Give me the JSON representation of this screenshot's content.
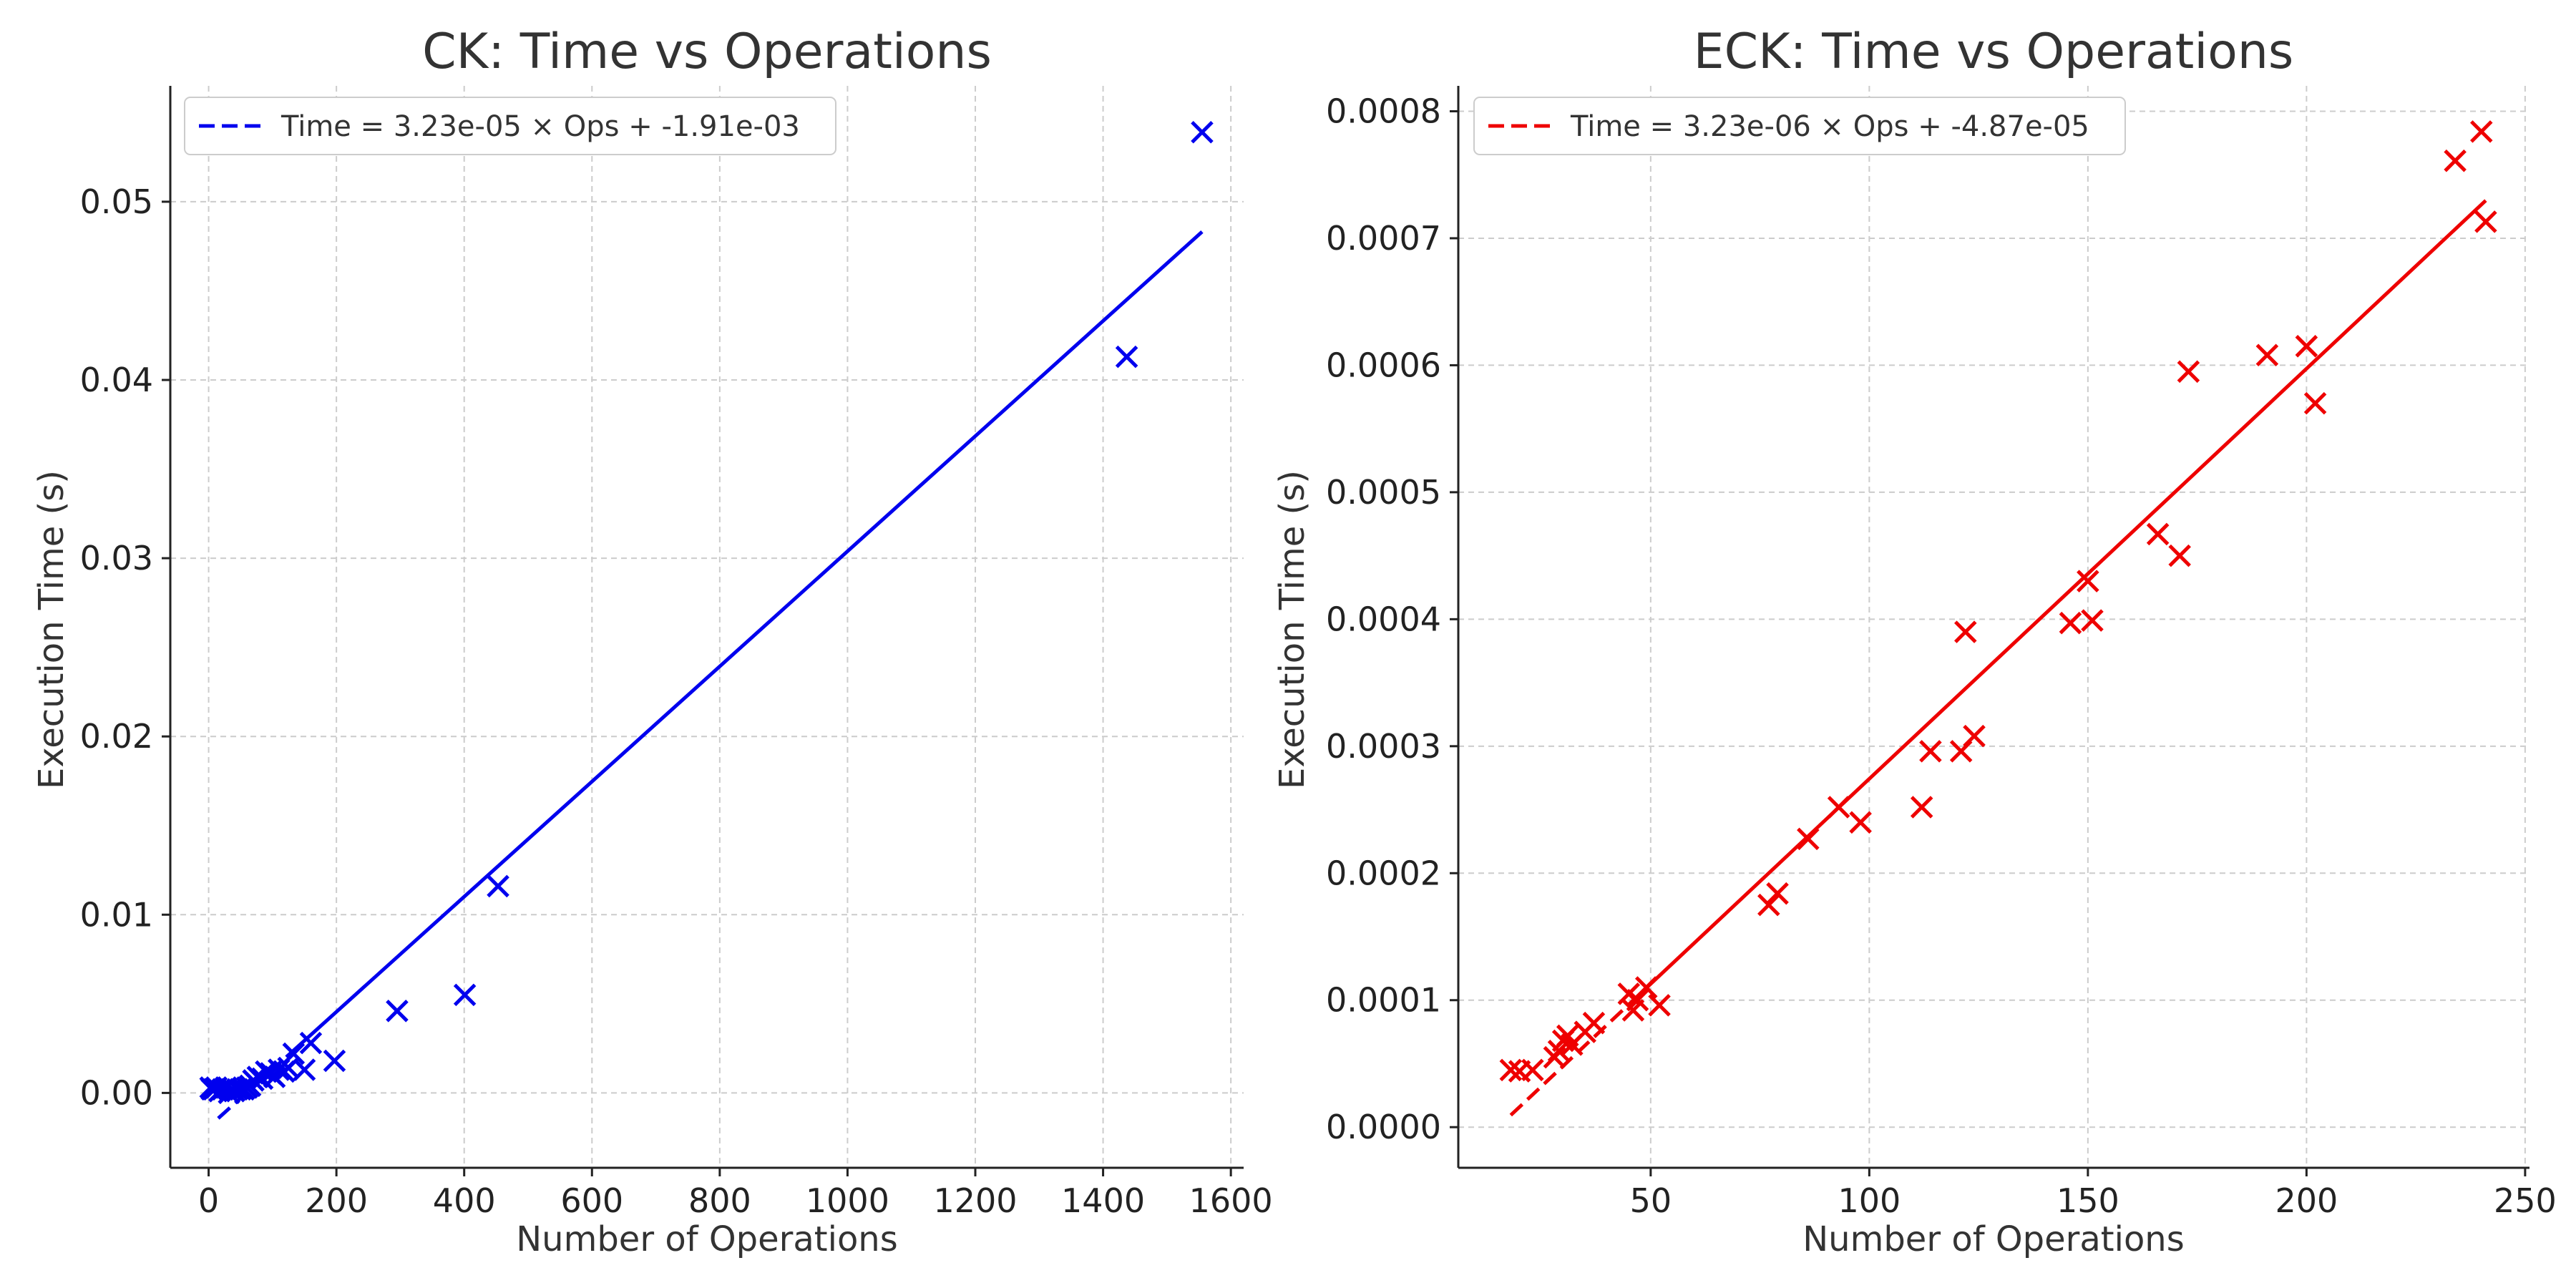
{
  "chart_data": [
    {
      "type": "scatter",
      "title": "CK: Time vs Operations",
      "xlabel": "Number of Operations",
      "ylabel": "Execution Time (s)",
      "xlim": [
        -60,
        1620
      ],
      "ylim": [
        -0.0042,
        0.0565
      ],
      "xticks": [
        0,
        200,
        400,
        600,
        800,
        1000,
        1200,
        1400,
        1600
      ],
      "yticks": [
        0.0,
        0.01,
        0.02,
        0.03,
        0.04,
        0.05
      ],
      "xtick_labels": [
        "0",
        "200",
        "400",
        "600",
        "800",
        "1000",
        "1200",
        "1400",
        "1600"
      ],
      "ytick_labels": [
        "0.00",
        "0.01",
        "0.02",
        "0.03",
        "0.04",
        "0.05"
      ],
      "grid": true,
      "legend": "top-left",
      "color": "#0000ee",
      "marker": "x",
      "points": [
        [
          1555,
          0.0539
        ],
        [
          1437,
          0.0413
        ],
        [
          453,
          0.0116
        ],
        [
          401,
          0.0055
        ],
        [
          295,
          0.0046
        ],
        [
          197,
          0.0018
        ],
        [
          160,
          0.0028
        ],
        [
          150,
          0.0013
        ],
        [
          133,
          0.0022
        ],
        [
          125,
          0.0014
        ],
        [
          118,
          0.0012
        ],
        [
          110,
          0.0013
        ],
        [
          103,
          0.0009
        ],
        [
          97,
          0.0011
        ],
        [
          90,
          0.0012
        ],
        [
          84,
          0.0008
        ],
        [
          77,
          0.0009
        ],
        [
          70,
          0.0007
        ],
        [
          65,
          0.0004
        ],
        [
          60,
          0.0003
        ],
        [
          55,
          0.0002
        ],
        [
          50,
          0.0002
        ],
        [
          45,
          0.0002
        ],
        [
          40,
          0.0001
        ],
        [
          36,
          0.0002
        ],
        [
          32,
          0.0
        ],
        [
          27,
          0.0003
        ],
        [
          22,
          0.0002
        ],
        [
          17,
          0.0001
        ],
        [
          12,
          0.0003
        ],
        [
          8,
          0.0002
        ],
        [
          5,
          0.0002
        ],
        [
          3,
          0.0003
        ]
      ],
      "fit": {
        "label": "Time = 3.23e-05 × Ops + -1.91e-03",
        "slope": 3.23e-05,
        "intercept": -0.00191,
        "solid_from": 130,
        "x_start": 15,
        "x_end": 1555
      }
    },
    {
      "type": "scatter",
      "title": "ECK: Time vs Operations",
      "xlabel": "Number of Operations",
      "ylabel": "Execution Time (s)",
      "xlim": [
        6,
        251
      ],
      "ylim": [
        -3.2e-05,
        0.00082
      ],
      "xticks": [
        50,
        100,
        150,
        200,
        250
      ],
      "yticks": [
        0.0,
        0.0001,
        0.0002,
        0.0003,
        0.0004,
        0.0005,
        0.0006,
        0.0007,
        0.0008
      ],
      "xtick_labels": [
        "50",
        "100",
        "150",
        "200",
        "250"
      ],
      "ytick_labels": [
        "0.0000",
        "0.0001",
        "0.0002",
        "0.0003",
        "0.0004",
        "0.0005",
        "0.0006",
        "0.0007",
        "0.0008"
      ],
      "grid": true,
      "legend": "top-left",
      "color": "#ee0000",
      "marker": "x",
      "points": [
        [
          18,
          4.5e-05
        ],
        [
          20,
          4.4e-05
        ],
        [
          23,
          4.5e-05
        ],
        [
          28,
          5.5e-05
        ],
        [
          29,
          6e-05
        ],
        [
          30,
          6.8e-05
        ],
        [
          31,
          7.2e-05
        ],
        [
          32,
          6.5e-05
        ],
        [
          35,
          7.5e-05
        ],
        [
          37,
          8.2e-05
        ],
        [
          45,
          0.000105
        ],
        [
          46,
          9.2e-05
        ],
        [
          47,
          0.0001
        ],
        [
          49,
          0.00011
        ],
        [
          52,
          9.6e-05
        ],
        [
          77,
          0.000175
        ],
        [
          79,
          0.000184
        ],
        [
          86,
          0.000227
        ],
        [
          93,
          0.000252
        ],
        [
          98,
          0.00024
        ],
        [
          112,
          0.000252
        ],
        [
          114,
          0.000296
        ],
        [
          121,
          0.000296
        ],
        [
          122,
          0.00039
        ],
        [
          124,
          0.000308
        ],
        [
          146,
          0.000397
        ],
        [
          150,
          0.00043
        ],
        [
          151,
          0.000399
        ],
        [
          166,
          0.000467
        ],
        [
          171,
          0.00045
        ],
        [
          173,
          0.000595
        ],
        [
          191,
          0.000608
        ],
        [
          200,
          0.000615
        ],
        [
          202,
          0.00057
        ],
        [
          234,
          0.000761
        ],
        [
          240,
          0.000784
        ],
        [
          241,
          0.000713
        ]
      ],
      "fit": {
        "label": "Time = 3.23e-06 × Ops + -4.87e-05",
        "slope": 3.23e-06,
        "intercept": -4.87e-05,
        "solid_from": 45,
        "x_start": 18,
        "x_end": 241
      }
    }
  ]
}
